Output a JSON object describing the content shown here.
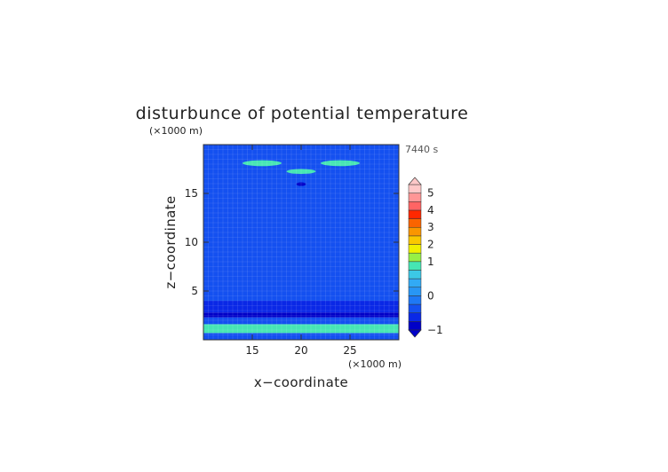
{
  "chart_data": {
    "type": "heatmap",
    "title": "disturbunce of potential temperature",
    "xlabel": "x−coordinate",
    "ylabel": "z−coordinate",
    "x_unit": "(×1000 m)",
    "y_unit": "(×1000 m)",
    "time_label": "7440 s",
    "xlim": [
      10,
      30
    ],
    "ylim": [
      0,
      20
    ],
    "x_ticks": [
      15,
      20,
      25
    ],
    "y_ticks": [
      5,
      10,
      15
    ],
    "grid": true,
    "colorbar": {
      "ticks": [
        5,
        4,
        3,
        2,
        1,
        0,
        -1
      ],
      "levels": [
        -1,
        -0.75,
        -0.5,
        -0.25,
        0,
        0.25,
        0.5,
        0.75,
        1,
        1.5,
        2,
        2.5,
        3,
        3.5,
        4,
        4.5,
        5
      ],
      "colors": [
        "#0000c8",
        "#0a28e6",
        "#1450f0",
        "#1e78f5",
        "#2896f5",
        "#32aaf5",
        "#3cc8e6",
        "#46e6b4",
        "#96f046",
        "#f0f000",
        "#fac800",
        "#fa9600",
        "#fa6400",
        "#ff2800",
        "#ff6464",
        "#ff9696",
        "#ffc8c8"
      ],
      "extend": "both"
    },
    "bands": [
      {
        "z_range": [
          0,
          0.7
        ],
        "value": -0.3
      },
      {
        "z_range": [
          0.7,
          1.6
        ],
        "value": 0.8
      },
      {
        "z_range": [
          1.6,
          2.3
        ],
        "value": -0.3
      },
      {
        "z_range": [
          2.3,
          2.8
        ],
        "value": -0.9
      },
      {
        "z_range": [
          2.8,
          4.0
        ],
        "value": -0.55
      },
      {
        "z_range": [
          4.0,
          20
        ],
        "value": -0.3
      }
    ],
    "features": [
      {
        "type": "dome",
        "x_range": [
          11,
          29
        ],
        "z_range": [
          5.5,
          8
        ],
        "value": -0.45
      },
      {
        "type": "dome",
        "x_range": [
          12,
          28
        ],
        "z_range": [
          10,
          13.5
        ],
        "value": -0.45
      },
      {
        "type": "band",
        "z_range": [
          16,
          17.2
        ],
        "value": -0.45
      },
      {
        "type": "band",
        "z_range": [
          4.6,
          5.1
        ],
        "value": -0.45
      },
      {
        "type": "cell",
        "x_range": [
          14,
          18
        ],
        "z_range": [
          17.8,
          18.4
        ],
        "value": 0.8
      },
      {
        "type": "cell",
        "x_range": [
          22,
          26
        ],
        "z_range": [
          17.8,
          18.4
        ],
        "value": 0.8
      },
      {
        "type": "cell",
        "x_range": [
          18.5,
          21.5
        ],
        "z_range": [
          17.0,
          17.5
        ],
        "value": 0.8
      },
      {
        "type": "cell",
        "x_range": [
          19.5,
          20.5
        ],
        "z_range": [
          15.8,
          16.1
        ],
        "value": -0.95
      }
    ]
  }
}
